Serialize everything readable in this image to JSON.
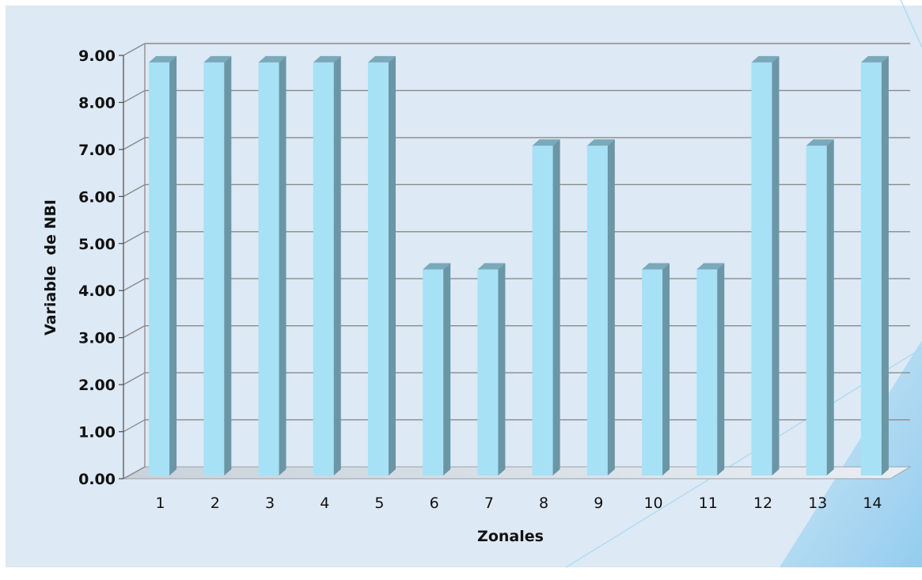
{
  "chart_data": {
    "type": "bar",
    "title": "",
    "xlabel": "Zonales",
    "ylabel": "Variable  de NBI",
    "categories": [
      "1",
      "2",
      "3",
      "4",
      "5",
      "6",
      "7",
      "8",
      "9",
      "10",
      "11",
      "12",
      "13",
      "14"
    ],
    "values": [
      8.8,
      8.8,
      8.8,
      8.8,
      8.8,
      4.4,
      4.4,
      7.03,
      7.03,
      4.4,
      4.4,
      8.8,
      7.03,
      8.8
    ],
    "yticks": [
      "0.00",
      "1.00",
      "2.00",
      "3.00",
      "4.00",
      "5.00",
      "6.00",
      "7.00",
      "8.00",
      "9.00"
    ],
    "ylim": [
      0,
      9
    ],
    "grid": true,
    "legend": "none",
    "style": "3d-bar",
    "colors": {
      "bar_front": "#a6e1f6",
      "bar_side": "#6a96a6",
      "bar_top": "#7aa9ba",
      "plot_background": "#dde9f5",
      "page_background": "#ffffff",
      "grid": "#8a8a8a",
      "accent_band": "#9fd2ef"
    }
  }
}
